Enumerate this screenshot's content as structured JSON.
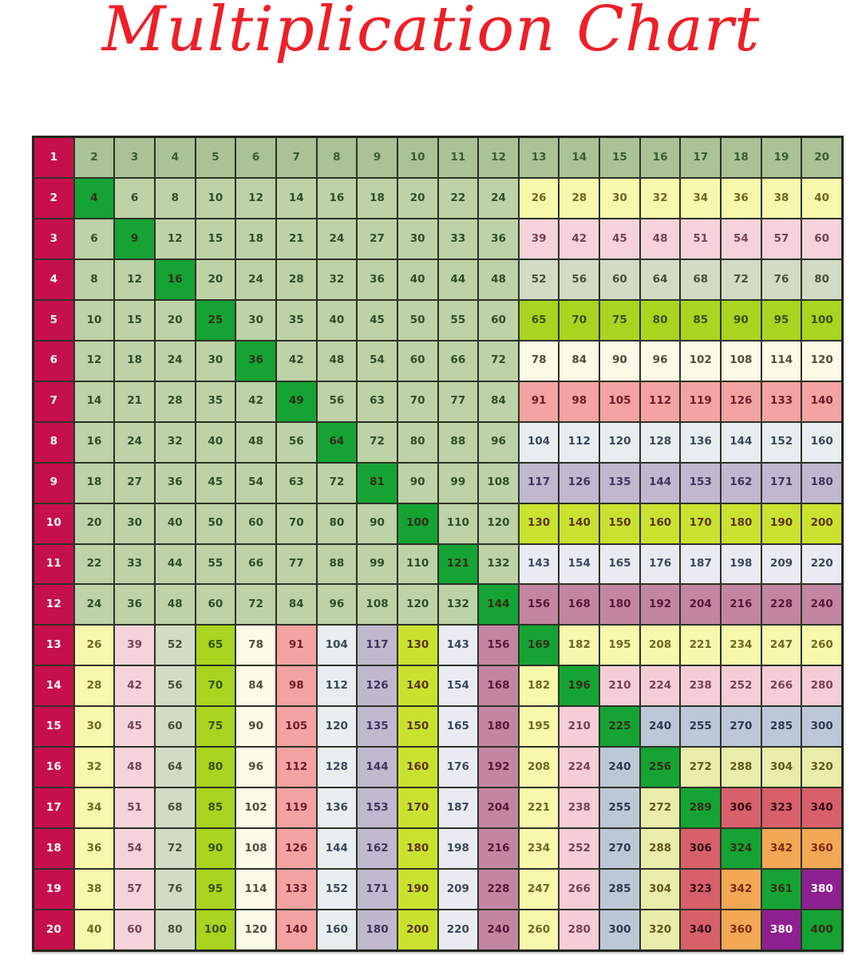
{
  "title": {
    "text": "Multiplication Chart",
    "color": "#ee1f27"
  },
  "chart_data": {
    "type": "table",
    "title": "Multiplication Chart",
    "row_factors": [
      1,
      2,
      3,
      4,
      5,
      6,
      7,
      8,
      9,
      10,
      11,
      12,
      13,
      14,
      15,
      16,
      17,
      18,
      19,
      20
    ],
    "col_factors": [
      1,
      2,
      3,
      4,
      5,
      6,
      7,
      8,
      9,
      10,
      11,
      12,
      13,
      14,
      15,
      16,
      17,
      18,
      19,
      20
    ],
    "matrix": [
      [
        1,
        2,
        3,
        4,
        5,
        6,
        7,
        8,
        9,
        10,
        11,
        12,
        13,
        14,
        15,
        16,
        17,
        18,
        19,
        20
      ],
      [
        2,
        4,
        6,
        8,
        10,
        12,
        14,
        16,
        18,
        20,
        22,
        24,
        26,
        28,
        30,
        32,
        34,
        36,
        38,
        40
      ],
      [
        3,
        6,
        9,
        12,
        15,
        18,
        21,
        24,
        27,
        30,
        33,
        36,
        39,
        42,
        45,
        48,
        51,
        54,
        57,
        60
      ],
      [
        4,
        8,
        12,
        16,
        20,
        24,
        28,
        32,
        36,
        40,
        44,
        48,
        52,
        56,
        60,
        64,
        68,
        72,
        76,
        80
      ],
      [
        5,
        10,
        15,
        20,
        25,
        30,
        35,
        40,
        45,
        50,
        55,
        60,
        65,
        70,
        75,
        80,
        85,
        90,
        95,
        100
      ],
      [
        6,
        12,
        18,
        24,
        30,
        36,
        42,
        48,
        54,
        60,
        66,
        72,
        78,
        84,
        90,
        96,
        102,
        108,
        114,
        120
      ],
      [
        7,
        14,
        21,
        28,
        35,
        42,
        49,
        56,
        63,
        70,
        77,
        84,
        91,
        98,
        105,
        112,
        119,
        126,
        133,
        140
      ],
      [
        8,
        16,
        24,
        32,
        40,
        48,
        56,
        64,
        72,
        80,
        88,
        96,
        104,
        112,
        120,
        128,
        136,
        144,
        152,
        160
      ],
      [
        9,
        18,
        27,
        36,
        45,
        54,
        63,
        72,
        81,
        90,
        99,
        108,
        117,
        126,
        135,
        144,
        153,
        162,
        171,
        180
      ],
      [
        10,
        20,
        30,
        40,
        50,
        60,
        70,
        80,
        90,
        100,
        110,
        120,
        130,
        140,
        150,
        160,
        170,
        180,
        190,
        200
      ],
      [
        11,
        22,
        33,
        44,
        55,
        66,
        77,
        88,
        99,
        110,
        121,
        132,
        143,
        154,
        165,
        176,
        187,
        198,
        209,
        220
      ],
      [
        12,
        24,
        36,
        48,
        60,
        72,
        84,
        96,
        108,
        120,
        132,
        144,
        156,
        168,
        180,
        192,
        204,
        216,
        228,
        240
      ],
      [
        13,
        26,
        39,
        52,
        65,
        78,
        91,
        104,
        117,
        130,
        143,
        156,
        169,
        182,
        195,
        208,
        221,
        234,
        247,
        260
      ],
      [
        14,
        28,
        42,
        56,
        70,
        84,
        98,
        112,
        126,
        140,
        154,
        168,
        182,
        196,
        210,
        224,
        238,
        252,
        266,
        280
      ],
      [
        15,
        30,
        45,
        60,
        75,
        90,
        105,
        120,
        135,
        150,
        165,
        180,
        195,
        210,
        225,
        240,
        255,
        270,
        285,
        300
      ],
      [
        16,
        32,
        48,
        64,
        80,
        96,
        112,
        128,
        144,
        160,
        176,
        192,
        208,
        224,
        240,
        256,
        272,
        288,
        304,
        320
      ],
      [
        17,
        34,
        51,
        68,
        85,
        102,
        119,
        136,
        153,
        170,
        187,
        204,
        221,
        238,
        255,
        272,
        289,
        306,
        323,
        340
      ],
      [
        18,
        36,
        54,
        72,
        90,
        108,
        126,
        144,
        162,
        180,
        198,
        216,
        234,
        252,
        270,
        288,
        306,
        324,
        342,
        360
      ],
      [
        19,
        38,
        57,
        76,
        95,
        114,
        133,
        152,
        171,
        190,
        209,
        228,
        247,
        266,
        285,
        304,
        323,
        342,
        361,
        380
      ],
      [
        20,
        40,
        60,
        80,
        100,
        120,
        140,
        160,
        180,
        200,
        220,
        240,
        260,
        280,
        300,
        320,
        340,
        360,
        380,
        400
      ]
    ]
  },
  "colors": {
    "row_header": {
      "bg": "#c5104c",
      "fg": "#ffffff"
    },
    "col_header": {
      "bg": "#aac295",
      "fg": "#3a5c30"
    },
    "base": {
      "bg": "#bdd2a7",
      "fg": "#2f4d28"
    },
    "diagonal": {
      "bg": "#15a334",
      "fg": "#332d15"
    },
    "grid_line": "#2c3226",
    "bands": {
      "2": {
        "bg": "#f8f8ac",
        "fg": "#6f6820"
      },
      "3": {
        "bg": "#f6d3da",
        "fg": "#774253"
      },
      "4": {
        "bg": "#d2dbc6",
        "fg": "#44523a"
      },
      "5": {
        "bg": "#a9d41f",
        "fg": "#33530f"
      },
      "6": {
        "bg": "#fafae7",
        "fg": "#4f4f3c"
      },
      "7": {
        "bg": "#f4a2a2",
        "fg": "#701c26"
      },
      "8": {
        "bg": "#e8edf0",
        "fg": "#39485c"
      },
      "9": {
        "bg": "#c0b8ce",
        "fg": "#3f3560"
      },
      "10": {
        "bg": "#c9e230",
        "fg": "#5c330f"
      },
      "11": {
        "bg": "#e9ebf2",
        "fg": "#39485c"
      },
      "12": {
        "bg": "#c286a1",
        "fg": "#55183a"
      },
      "13": {
        "bg": "#f8f8ac",
        "fg": "#6f6820"
      },
      "14": {
        "bg": "#f5cdd6",
        "fg": "#774253"
      },
      "15": {
        "bg": "#bcc8d7",
        "fg": "#2c3a52"
      },
      "16": {
        "bg": "#e9eda9",
        "fg": "#5f5a17"
      },
      "17": {
        "bg": "#d8606a",
        "fg": "#331016"
      },
      "18": {
        "bg": "#f2a854",
        "fg": "#7a2a10"
      },
      "19": {
        "bg": "#8d2191",
        "fg": "#ffffff"
      }
    }
  }
}
